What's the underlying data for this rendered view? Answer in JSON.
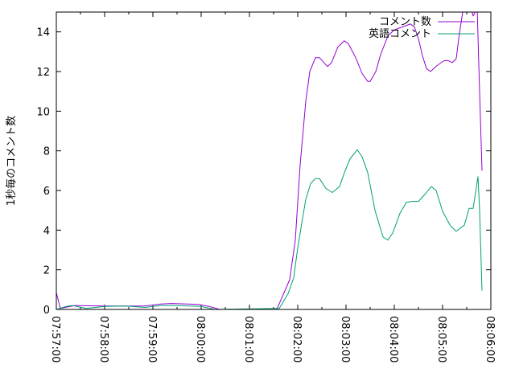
{
  "chart_data": {
    "type": "line",
    "title": "",
    "xlabel": "",
    "ylabel": "1秒毎のコメント数",
    "xlim": [
      "07:57:00",
      "08:06:00"
    ],
    "ylim": [
      0,
      15
    ],
    "x_ticks": [
      "07:57:00",
      "07:58:00",
      "07:59:00",
      "08:00:00",
      "08:01:00",
      "08:02:00",
      "08:03:00",
      "08:04:00",
      "08:05:00",
      "08:06:00"
    ],
    "y_ticks": [
      "0",
      "2",
      "4",
      "6",
      "8",
      "10",
      "12",
      "14"
    ],
    "grid": false,
    "legend_position": "top-right",
    "series": [
      {
        "name": "コメント数",
        "color": "#9400d3",
        "points": [
          [
            "07:57:00",
            0.85
          ],
          [
            "07:57:05",
            0.05
          ],
          [
            "07:57:23",
            0.2
          ],
          [
            "07:58:00",
            0.17
          ],
          [
            "07:58:50",
            0.17
          ],
          [
            "07:59:10",
            0.27
          ],
          [
            "07:59:23",
            0.3
          ],
          [
            "07:59:43",
            0.27
          ],
          [
            "07:59:57",
            0.25
          ],
          [
            "08:00:10",
            0.15
          ],
          [
            "08:00:23",
            0
          ],
          [
            "08:01:33",
            0
          ],
          [
            "08:01:35",
            0.1
          ],
          [
            "08:01:50",
            1.5
          ],
          [
            "08:01:57",
            3.5
          ],
          [
            "08:02:03",
            7.3
          ],
          [
            "08:02:10",
            10.5
          ],
          [
            "08:02:15",
            12.0
          ],
          [
            "08:02:22",
            12.7
          ],
          [
            "08:02:27",
            12.7
          ],
          [
            "08:02:37",
            12.25
          ],
          [
            "08:02:42",
            12.45
          ],
          [
            "08:02:50",
            13.25
          ],
          [
            "08:02:58",
            13.55
          ],
          [
            "08:03:03",
            13.4
          ],
          [
            "08:03:12",
            12.7
          ],
          [
            "08:03:20",
            11.9
          ],
          [
            "08:03:27",
            11.5
          ],
          [
            "08:03:30",
            11.5
          ],
          [
            "08:03:37",
            12.0
          ],
          [
            "08:03:43",
            12.85
          ],
          [
            "08:03:52",
            13.8
          ],
          [
            "08:04:00",
            14.1
          ],
          [
            "08:04:10",
            14.25
          ],
          [
            "08:04:20",
            14.4
          ],
          [
            "08:04:25",
            14.25
          ],
          [
            "08:04:30",
            13.65
          ],
          [
            "08:04:35",
            12.8
          ],
          [
            "08:04:40",
            12.15
          ],
          [
            "08:04:45",
            12.0
          ],
          [
            "08:04:53",
            12.3
          ],
          [
            "08:05:02",
            12.55
          ],
          [
            "08:05:07",
            12.55
          ],
          [
            "08:05:12",
            12.45
          ],
          [
            "08:05:17",
            12.65
          ],
          [
            "08:05:20",
            13.65
          ],
          [
            "08:05:25",
            15.0
          ],
          [
            "08:05:30",
            16.0
          ],
          [
            "08:05:38",
            14.8
          ],
          [
            "08:05:43",
            15.2
          ],
          [
            "08:05:46",
            11.0
          ],
          [
            "08:05:49",
            7.0
          ]
        ]
      },
      {
        "name": "英語コメント",
        "color": "#009e73",
        "points": [
          [
            "07:57:00",
            0
          ],
          [
            "07:57:12",
            0.15
          ],
          [
            "07:57:20",
            0.2
          ],
          [
            "07:57:37",
            0.05
          ],
          [
            "07:58:00",
            0.15
          ],
          [
            "07:58:27",
            0.17
          ],
          [
            "07:58:50",
            0.1
          ],
          [
            "07:59:10",
            0.2
          ],
          [
            "07:59:30",
            0.2
          ],
          [
            "08:00:00",
            0.15
          ],
          [
            "08:00:17",
            0
          ],
          [
            "08:01:37",
            0.05
          ],
          [
            "08:01:48",
            0.8
          ],
          [
            "08:01:55",
            1.6
          ],
          [
            "08:02:00",
            3.1
          ],
          [
            "08:02:05",
            4.35
          ],
          [
            "08:02:10",
            5.55
          ],
          [
            "08:02:16",
            6.35
          ],
          [
            "08:02:22",
            6.6
          ],
          [
            "08:02:27",
            6.6
          ],
          [
            "08:02:35",
            6.1
          ],
          [
            "08:02:43",
            5.9
          ],
          [
            "08:02:52",
            6.2
          ],
          [
            "08:02:58",
            6.9
          ],
          [
            "08:03:05",
            7.6
          ],
          [
            "08:03:14",
            8.05
          ],
          [
            "08:03:20",
            7.7
          ],
          [
            "08:03:27",
            6.9
          ],
          [
            "08:03:36",
            5.0
          ],
          [
            "08:03:46",
            3.65
          ],
          [
            "08:03:52",
            3.5
          ],
          [
            "08:03:58",
            3.85
          ],
          [
            "08:04:07",
            4.85
          ],
          [
            "08:04:15",
            5.4
          ],
          [
            "08:04:22",
            5.45
          ],
          [
            "08:04:30",
            5.45
          ],
          [
            "08:04:38",
            5.8
          ],
          [
            "08:04:46",
            6.2
          ],
          [
            "08:04:52",
            6.0
          ],
          [
            "08:05:00",
            4.95
          ],
          [
            "08:05:10",
            4.2
          ],
          [
            "08:05:17",
            3.95
          ],
          [
            "08:05:27",
            4.25
          ],
          [
            "08:05:33",
            5.1
          ],
          [
            "08:05:38",
            5.1
          ],
          [
            "08:05:44",
            6.7
          ],
          [
            "08:05:46",
            5.0
          ],
          [
            "08:05:49",
            0.95
          ]
        ]
      }
    ]
  }
}
